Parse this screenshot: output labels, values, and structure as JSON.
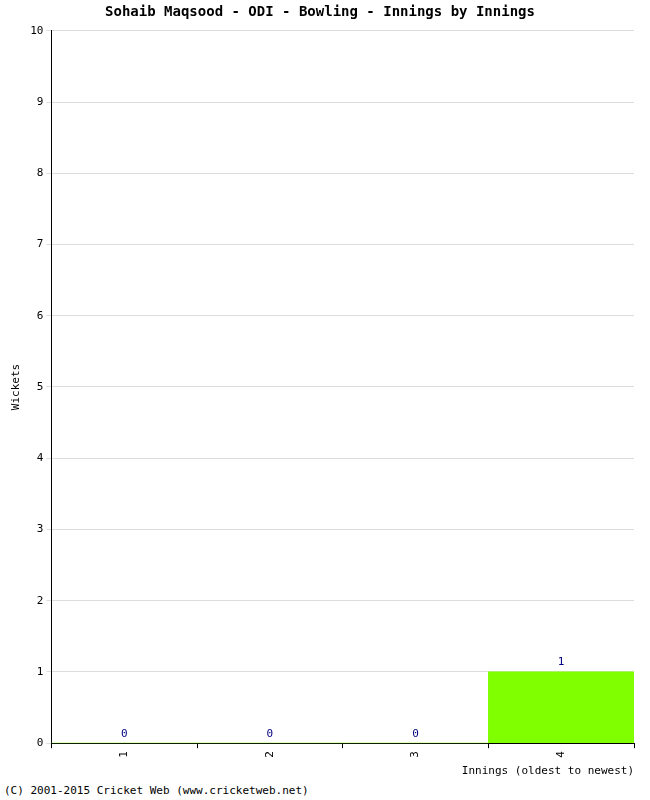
{
  "chart_data": {
    "type": "bar",
    "title": "Sohaib Maqsood - ODI - Bowling - Innings by Innings",
    "x_label": "Innings (oldest to newest)",
    "y_label": "Wickets",
    "categories": [
      "1",
      "2",
      "3",
      "4"
    ],
    "values": [
      0,
      0,
      0,
      1
    ],
    "color": "#7fff00",
    "ylim": [
      0,
      10
    ],
    "yticks": [
      0,
      1,
      2,
      3,
      4,
      5,
      6,
      7,
      8,
      9,
      10
    ],
    "grid": true,
    "data_labels": true,
    "annotations": [
      "(C) 2001-2015 Cricket Web (www.cricketweb.net)"
    ]
  }
}
